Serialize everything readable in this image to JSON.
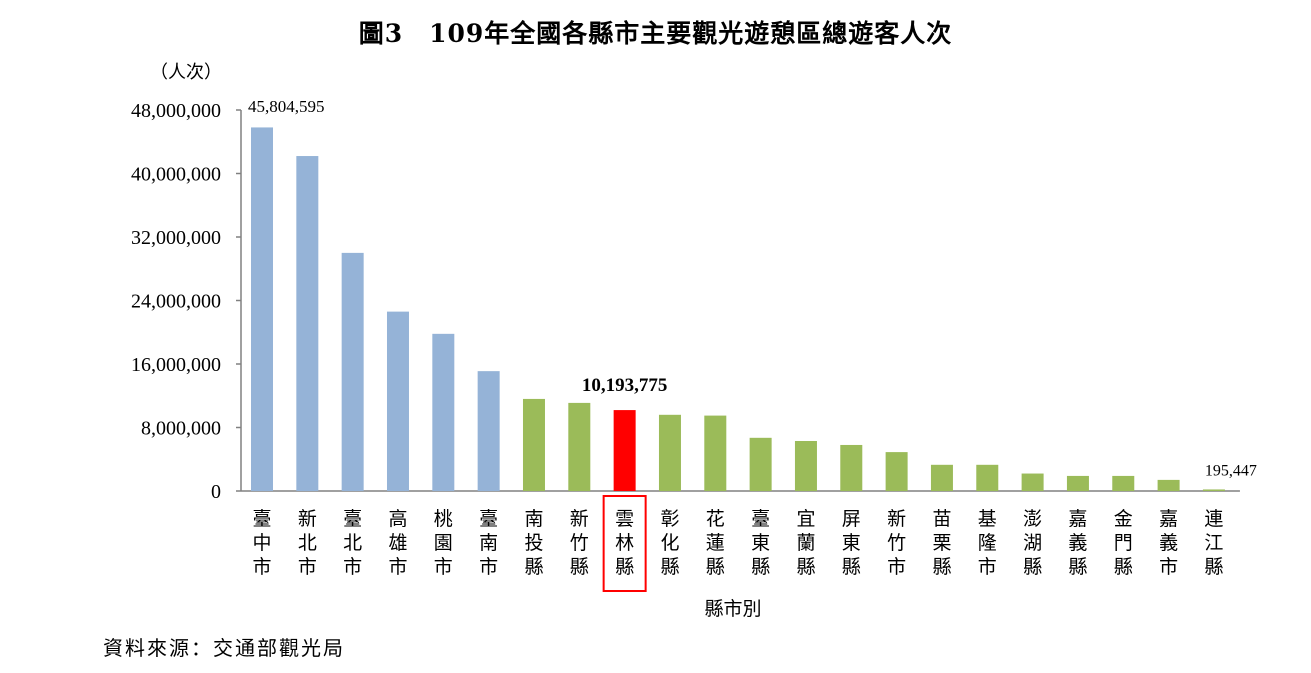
{
  "title": {
    "figure_no": "圖3",
    "text": "109年全國各縣市主要觀光遊憩區總遊客人次"
  },
  "source": "資料來源：交通部觀光局",
  "colors": {
    "blue": "#95b3d7",
    "green": "#9bbb59",
    "red": "#ff0000",
    "axis": "#808080",
    "label_blue": "#4040ff",
    "label_red": "#ff0000",
    "label_olive": "#7f9f4f"
  },
  "chart_data": {
    "type": "bar",
    "ylabel": "（人次）",
    "xlabel": "縣市別",
    "ylim": [
      0,
      48000000
    ],
    "yticks": [
      0,
      8000000,
      16000000,
      24000000,
      32000000,
      40000000,
      48000000
    ],
    "ytick_labels": [
      "0",
      "8,000,000",
      "16,000,000",
      "24,000,000",
      "32,000,000",
      "40,000,000",
      "48,000,000"
    ],
    "grid": false,
    "legend": "none",
    "categories": [
      "臺中市",
      "新北市",
      "臺北市",
      "高雄市",
      "桃園市",
      "臺南市",
      "南投縣",
      "新竹縣",
      "雲林縣",
      "彰化縣",
      "花蓮縣",
      "臺東縣",
      "宜蘭縣",
      "屏東縣",
      "新竹市",
      "苗栗縣",
      "基隆市",
      "澎湖縣",
      "嘉義縣",
      "金門縣",
      "嘉義市",
      "連江縣"
    ],
    "values": [
      45804595,
      42200000,
      30000000,
      22600000,
      19800000,
      15100000,
      11600000,
      11100000,
      10193775,
      9600000,
      9500000,
      6700000,
      6300000,
      5800000,
      4900000,
      3300000,
      3300000,
      2200000,
      1900000,
      1900000,
      1400000,
      195447
    ],
    "bar_colors": [
      "blue",
      "blue",
      "blue",
      "blue",
      "blue",
      "blue",
      "green",
      "green",
      "red",
      "green",
      "green",
      "green",
      "green",
      "green",
      "green",
      "green",
      "green",
      "green",
      "green",
      "green",
      "green",
      "green"
    ],
    "highlight_index": 8,
    "annotations": [
      {
        "index": 0,
        "text": "45,804,595",
        "color": "label_blue"
      },
      {
        "index": 8,
        "text": "10,193,775",
        "color": "label_red",
        "bold": true
      },
      {
        "index": 21,
        "text": "195,447",
        "color": "label_olive"
      }
    ]
  }
}
